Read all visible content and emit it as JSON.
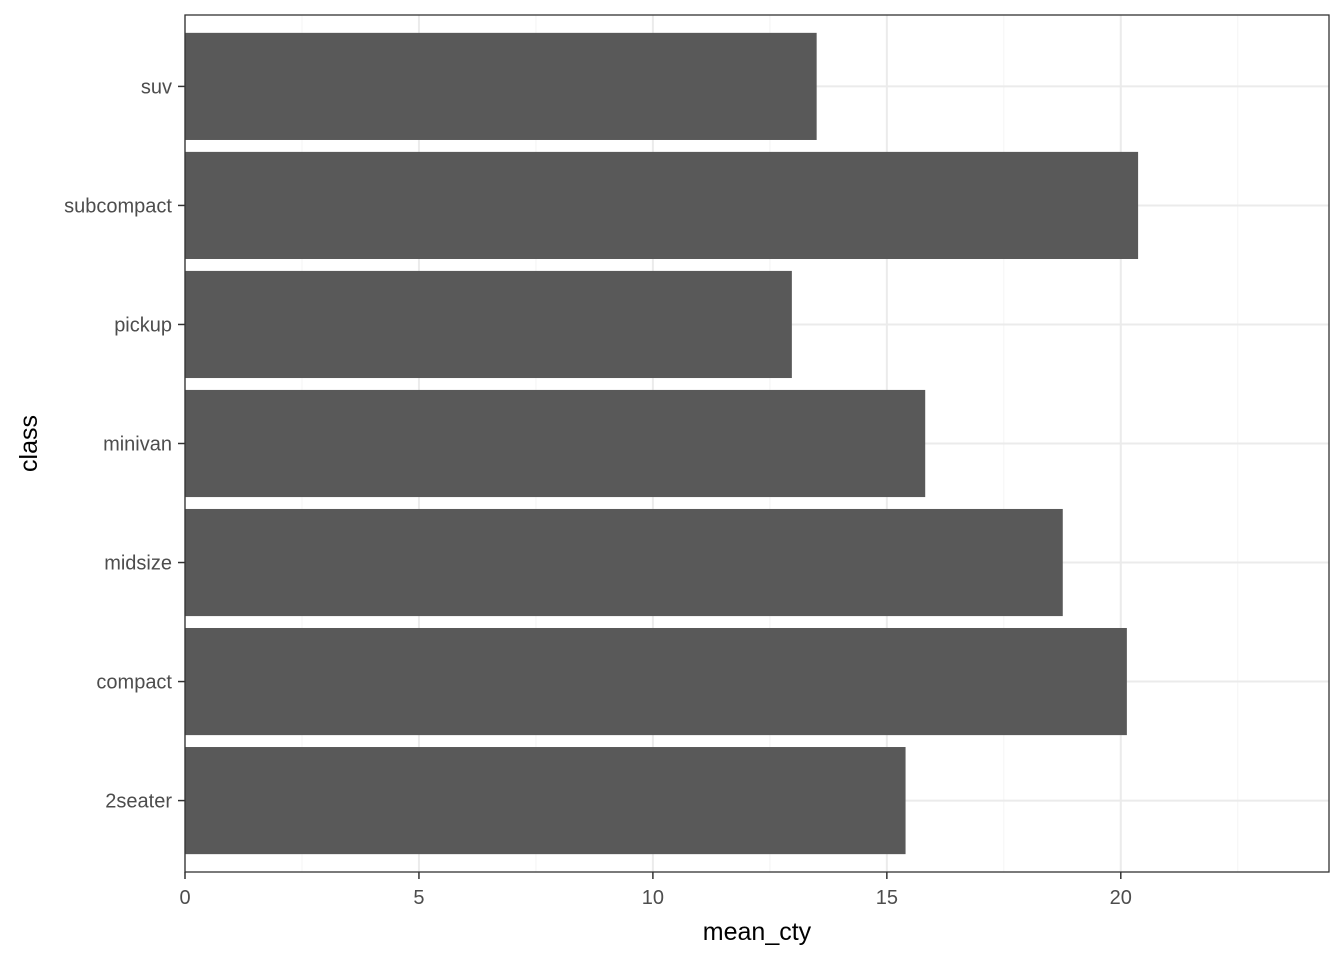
{
  "chart_data": {
    "type": "bar",
    "orientation": "horizontal",
    "categories": [
      "2seater",
      "compact",
      "midsize",
      "minivan",
      "pickup",
      "subcompact",
      "suv"
    ],
    "values": [
      15.4,
      20.13,
      18.76,
      15.82,
      12.97,
      20.37,
      13.5
    ],
    "xlabel": "mean_cty",
    "ylabel": "class",
    "xlim": [
      0,
      24.45
    ],
    "xticks": [
      0,
      5,
      10,
      15,
      20
    ],
    "xtick_labels": [
      "0",
      "5",
      "10",
      "15",
      "20"
    ],
    "grid": true,
    "legend": "none",
    "colors": {
      "bar": "#595959",
      "grid_major": "#ebebeb",
      "grid_minor": "#f5f5f5",
      "panel_border": "#333333",
      "tick_text": "#4d4d4d",
      "title_text": "#000000",
      "background": "#ffffff"
    }
  }
}
